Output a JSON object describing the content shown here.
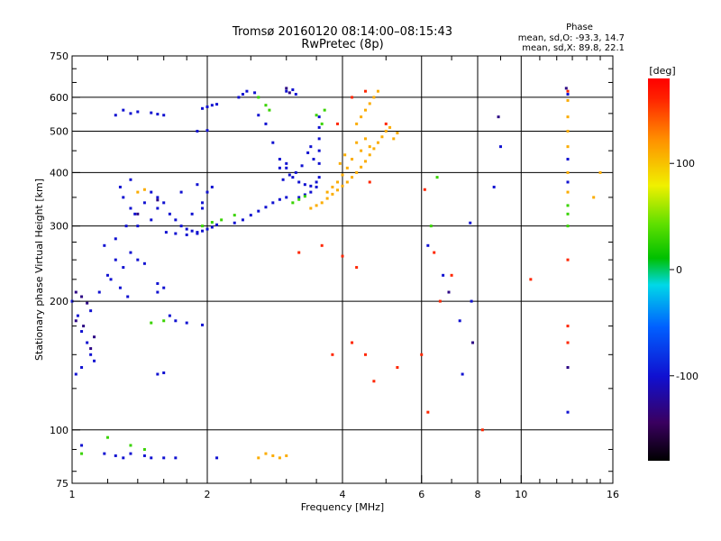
{
  "chart_data": {
    "type": "scatter",
    "title": "Tromsø 20160120 08:14:00–08:15:43",
    "subtitle": "RwPretec (8p)",
    "xlabel": "Frequency [MHz]",
    "ylabel": "Stationary phase Virtual Height [km]",
    "x_scale": "log2",
    "y_scale": "log",
    "xlim": [
      1,
      16
    ],
    "ylim": [
      75,
      750
    ],
    "x_ticks": [
      1,
      2,
      4,
      6,
      8,
      10,
      16
    ],
    "x_tick_labels": [
      "1",
      "2",
      "4",
      "6",
      "8",
      "10",
      "16"
    ],
    "y_ticks": [
      75,
      100,
      200,
      300,
      400,
      500,
      600,
      750
    ],
    "y_tick_labels": [
      "75",
      "100",
      "200",
      "300",
      "400",
      "500",
      "600",
      "750"
    ],
    "x_gridlines": [
      2,
      4,
      6,
      8,
      10
    ],
    "y_gridlines": [
      100,
      200,
      300,
      400,
      500,
      600
    ],
    "colorbar": {
      "label": "[deg]",
      "min": -180,
      "max": 180,
      "ticks": [
        100,
        0,
        -100
      ],
      "tick_labels": [
        "100",
        "0",
        "-100"
      ]
    },
    "stats": {
      "heading": "Phase",
      "line_o": "mean, sd,O: -93.3, 14.7",
      "line_x": "mean, sd,X:  89.8, 22.1"
    },
    "series": [
      {
        "phase": -100,
        "points": [
          [
            1.0,
            200
          ],
          [
            1.03,
            185
          ],
          [
            1.05,
            170
          ],
          [
            1.08,
            160
          ],
          [
            1.1,
            150
          ],
          [
            1.12,
            145
          ],
          [
            1.05,
            140
          ],
          [
            1.02,
            135
          ],
          [
            1.1,
            190
          ],
          [
            1.15,
            210
          ],
          [
            1.2,
            230
          ],
          [
            1.25,
            250
          ],
          [
            1.3,
            240
          ],
          [
            1.35,
            260
          ],
          [
            1.4,
            250
          ],
          [
            1.45,
            245
          ],
          [
            1.22,
            225
          ],
          [
            1.28,
            215
          ],
          [
            1.33,
            205
          ],
          [
            1.18,
            270
          ],
          [
            1.25,
            280
          ],
          [
            1.32,
            300
          ],
          [
            1.38,
            320
          ],
          [
            1.45,
            340
          ],
          [
            1.5,
            360
          ],
          [
            1.55,
            350
          ],
          [
            1.6,
            340
          ],
          [
            1.65,
            320
          ],
          [
            1.7,
            310
          ],
          [
            1.75,
            300
          ],
          [
            1.8,
            295
          ],
          [
            1.85,
            292
          ],
          [
            1.9,
            290
          ],
          [
            1.95,
            292
          ],
          [
            2.0,
            295
          ],
          [
            2.05,
            298
          ],
          [
            2.1,
            302
          ],
          [
            1.62,
            290
          ],
          [
            1.7,
            288
          ],
          [
            1.8,
            286
          ],
          [
            1.9,
            288
          ],
          [
            1.4,
            300
          ],
          [
            1.5,
            310
          ],
          [
            1.35,
            330
          ],
          [
            1.3,
            350
          ],
          [
            1.28,
            370
          ],
          [
            1.35,
            385
          ],
          [
            1.55,
            330
          ],
          [
            1.85,
            320
          ],
          [
            1.95,
            330
          ],
          [
            1.95,
            340
          ],
          [
            2.0,
            360
          ],
          [
            2.05,
            370
          ],
          [
            1.75,
            360
          ],
          [
            1.9,
            375
          ],
          [
            1.25,
            545
          ],
          [
            1.35,
            550
          ],
          [
            1.4,
            555
          ],
          [
            1.5,
            552
          ],
          [
            1.55,
            548
          ],
          [
            1.6,
            545
          ],
          [
            1.3,
            560
          ],
          [
            1.95,
            565
          ],
          [
            2.0,
            570
          ],
          [
            2.05,
            575
          ],
          [
            2.1,
            578
          ],
          [
            1.9,
            500
          ],
          [
            2.0,
            502
          ],
          [
            1.55,
            220
          ],
          [
            1.6,
            215
          ],
          [
            1.55,
            210
          ],
          [
            1.65,
            185
          ],
          [
            1.7,
            180
          ],
          [
            1.8,
            178
          ],
          [
            1.95,
            176
          ],
          [
            1.55,
            135
          ],
          [
            1.6,
            136
          ],
          [
            1.05,
            92
          ],
          [
            1.18,
            88
          ],
          [
            1.25,
            87
          ],
          [
            1.3,
            86
          ],
          [
            1.45,
            87
          ],
          [
            1.5,
            86
          ],
          [
            1.6,
            86
          ],
          [
            1.35,
            88
          ],
          [
            1.7,
            86
          ],
          [
            2.1,
            86
          ],
          [
            2.6,
            545
          ],
          [
            2.7,
            520
          ],
          [
            2.8,
            470
          ],
          [
            2.9,
            430
          ],
          [
            3.0,
            410
          ],
          [
            3.1,
            390
          ],
          [
            3.2,
            380
          ],
          [
            3.3,
            375
          ],
          [
            3.4,
            372
          ],
          [
            3.5,
            370
          ],
          [
            3.55,
            390
          ],
          [
            3.55,
            420
          ],
          [
            3.55,
            450
          ],
          [
            3.55,
            480
          ],
          [
            3.55,
            510
          ],
          [
            3.55,
            540
          ],
          [
            3.45,
            430
          ],
          [
            3.4,
            460
          ],
          [
            3.35,
            445
          ],
          [
            3.25,
            415
          ],
          [
            3.15,
            400
          ],
          [
            3.05,
            395
          ],
          [
            2.95,
            385
          ],
          [
            2.9,
            410
          ],
          [
            3.0,
            420
          ],
          [
            3.2,
            350
          ],
          [
            3.3,
            355
          ],
          [
            3.4,
            360
          ],
          [
            3.5,
            380
          ],
          [
            2.3,
            305
          ],
          [
            2.4,
            310
          ],
          [
            2.5,
            318
          ],
          [
            2.6,
            325
          ],
          [
            2.7,
            332
          ],
          [
            2.8,
            340
          ],
          [
            2.9,
            346
          ],
          [
            3.0,
            350
          ],
          [
            2.35,
            600
          ],
          [
            2.4,
            610
          ],
          [
            2.45,
            620
          ],
          [
            2.55,
            615
          ],
          [
            3.0,
            620
          ],
          [
            3.1,
            625
          ],
          [
            3.15,
            610
          ],
          [
            7.7,
            305
          ],
          [
            7.75,
            200
          ],
          [
            8.7,
            370
          ],
          [
            9.0,
            460
          ],
          [
            12.7,
            610
          ],
          [
            12.7,
            430
          ],
          [
            12.7,
            380
          ],
          [
            12.7,
            110
          ],
          [
            7.3,
            180
          ],
          [
            7.4,
            135
          ],
          [
            6.2,
            270
          ],
          [
            6.7,
            230
          ]
        ]
      },
      {
        "phase": 30,
        "points": [
          [
            3.5,
            545
          ],
          [
            3.6,
            520
          ],
          [
            3.65,
            560
          ],
          [
            1.95,
            300
          ],
          [
            2.05,
            306
          ],
          [
            2.15,
            310
          ],
          [
            2.3,
            318
          ],
          [
            3.1,
            340
          ],
          [
            3.2,
            346
          ],
          [
            3.3,
            352
          ],
          [
            2.6,
            600
          ],
          [
            2.7,
            575
          ],
          [
            2.75,
            560
          ],
          [
            1.6,
            180
          ],
          [
            1.5,
            178
          ],
          [
            1.35,
            92
          ],
          [
            1.45,
            90
          ],
          [
            1.05,
            88
          ],
          [
            1.2,
            96
          ],
          [
            6.3,
            300
          ],
          [
            6.5,
            390
          ],
          [
            12.7,
            335
          ],
          [
            12.7,
            320
          ],
          [
            12.7,
            300
          ]
        ]
      },
      {
        "phase": 110,
        "points": [
          [
            3.4,
            330
          ],
          [
            3.5,
            335
          ],
          [
            3.6,
            340
          ],
          [
            3.7,
            348
          ],
          [
            3.8,
            356
          ],
          [
            3.9,
            364
          ],
          [
            4.0,
            372
          ],
          [
            4.1,
            380
          ],
          [
            4.2,
            390
          ],
          [
            4.3,
            400
          ],
          [
            4.4,
            412
          ],
          [
            4.5,
            425
          ],
          [
            4.6,
            440
          ],
          [
            4.7,
            455
          ],
          [
            4.8,
            470
          ],
          [
            4.9,
            485
          ],
          [
            5.0,
            500
          ],
          [
            5.1,
            510
          ],
          [
            4.3,
            520
          ],
          [
            4.4,
            540
          ],
          [
            4.5,
            560
          ],
          [
            4.6,
            580
          ],
          [
            4.7,
            600
          ],
          [
            4.8,
            620
          ],
          [
            4.5,
            480
          ],
          [
            4.6,
            460
          ],
          [
            4.4,
            450
          ],
          [
            4.3,
            470
          ],
          [
            3.7,
            360
          ],
          [
            3.8,
            370
          ],
          [
            3.9,
            380
          ],
          [
            4.0,
            395
          ],
          [
            4.1,
            410
          ],
          [
            3.95,
            420
          ],
          [
            4.05,
            440
          ],
          [
            4.2,
            430
          ],
          [
            2.7,
            88
          ],
          [
            2.8,
            87
          ],
          [
            2.9,
            86
          ],
          [
            3.0,
            87
          ],
          [
            2.6,
            86
          ],
          [
            1.4,
            360
          ],
          [
            1.45,
            365
          ],
          [
            5.2,
            480
          ],
          [
            5.3,
            495
          ],
          [
            12.7,
            590
          ],
          [
            12.7,
            540
          ],
          [
            12.7,
            500
          ],
          [
            12.7,
            460
          ],
          [
            12.7,
            400
          ],
          [
            12.7,
            360
          ],
          [
            14.5,
            350
          ],
          [
            15.0,
            400
          ]
        ]
      },
      {
        "phase": 160,
        "points": [
          [
            3.9,
            520
          ],
          [
            4.2,
            600
          ],
          [
            4.5,
            620
          ],
          [
            4.6,
            380
          ],
          [
            5.0,
            520
          ],
          [
            3.8,
            150
          ],
          [
            4.2,
            160
          ],
          [
            4.5,
            150
          ],
          [
            4.7,
            130
          ],
          [
            5.3,
            140
          ],
          [
            6.0,
            150
          ],
          [
            6.4,
            260
          ],
          [
            7.0,
            230
          ],
          [
            3.2,
            260
          ],
          [
            3.6,
            270
          ],
          [
            4.0,
            255
          ],
          [
            4.3,
            240
          ],
          [
            8.2,
            100
          ],
          [
            6.2,
            110
          ],
          [
            6.6,
            200
          ],
          [
            10.5,
            225
          ],
          [
            12.7,
            620
          ],
          [
            12.7,
            250
          ],
          [
            12.7,
            175
          ],
          [
            12.7,
            160
          ],
          [
            6.1,
            365
          ]
        ]
      },
      {
        "phase": -130,
        "points": [
          [
            1.02,
            210
          ],
          [
            1.05,
            205
          ],
          [
            1.08,
            198
          ],
          [
            1.02,
            180
          ],
          [
            1.06,
            175
          ],
          [
            1.12,
            165
          ],
          [
            1.1,
            155
          ],
          [
            1.4,
            320
          ],
          [
            1.55,
            345
          ],
          [
            3.0,
            630
          ],
          [
            3.05,
            615
          ],
          [
            7.8,
            160
          ],
          [
            8.9,
            540
          ],
          [
            12.6,
            630
          ],
          [
            12.7,
            140
          ],
          [
            6.9,
            210
          ]
        ]
      }
    ]
  }
}
